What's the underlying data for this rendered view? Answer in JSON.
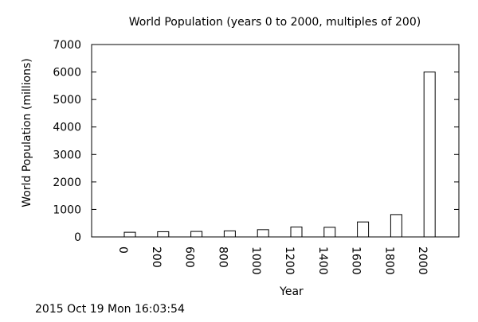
{
  "chart_data": {
    "type": "bar",
    "title": "World Population (years 0 to 2000, multiples of 200)",
    "xlabel": "Year",
    "ylabel": "World Population (millions)",
    "categories": [
      "0",
      "200",
      "600",
      "800",
      "1000",
      "1200",
      "1400",
      "1600",
      "1800",
      "2000"
    ],
    "values": [
      170,
      190,
      200,
      220,
      265,
      360,
      350,
      545,
      813,
      6000
    ],
    "ylim": [
      0,
      7000
    ],
    "yticks": [
      "0",
      "1000",
      "2000",
      "3000",
      "4000",
      "5000",
      "6000",
      "7000"
    ],
    "grid": false,
    "legend": "none",
    "colors": {
      "bar_fill": "#ffffff",
      "bar_stroke": "#000000"
    }
  },
  "footer": {
    "timestamp": "2015 Oct 19 Mon 16:03:54"
  }
}
